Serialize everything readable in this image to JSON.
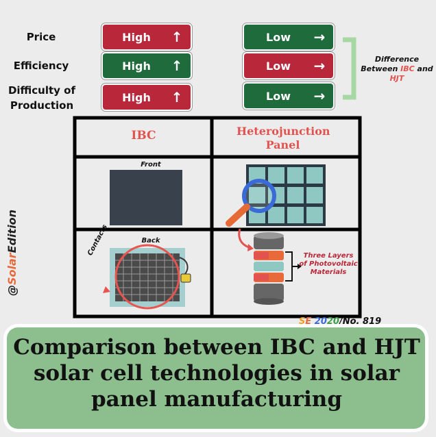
{
  "rows": [
    {
      "label": "Price",
      "ibc": "High",
      "hjt": "Low"
    },
    {
      "label": "Efficiency",
      "ibc": "High",
      "hjt": "Low"
    },
    {
      "label": "Difficulty of Production",
      "ibc": "High",
      "hjt": "Low"
    }
  ],
  "bracket_note": {
    "line1": "Difference",
    "line2_prefix": "Between ",
    "ibc": "IBC",
    "and": " and",
    "hjt": "HJT"
  },
  "table": {
    "col_ibc": "IBC",
    "col_hjt": "Heterojunction Panel",
    "front_label": "Front",
    "back_label": "Back",
    "contacts_label": "Contacts",
    "layers_label": "Three Layers of Photovoltaic Materials"
  },
  "watermark": {
    "at": "@",
    "solar": "Solar",
    "edition": "Edition"
  },
  "issue": {
    "se_s": "S",
    "se_e": "E",
    "year_a": "20",
    "year_b": "20",
    "num": "/No. 819"
  },
  "banner_title": "Comparison between IBC and HJT solar cell technologies in solar panel manufacturing",
  "colors": {
    "high": "#b8283a",
    "low": "#1f6b3c",
    "accent": "#e2534f",
    "banner": "#8dbf8e"
  }
}
